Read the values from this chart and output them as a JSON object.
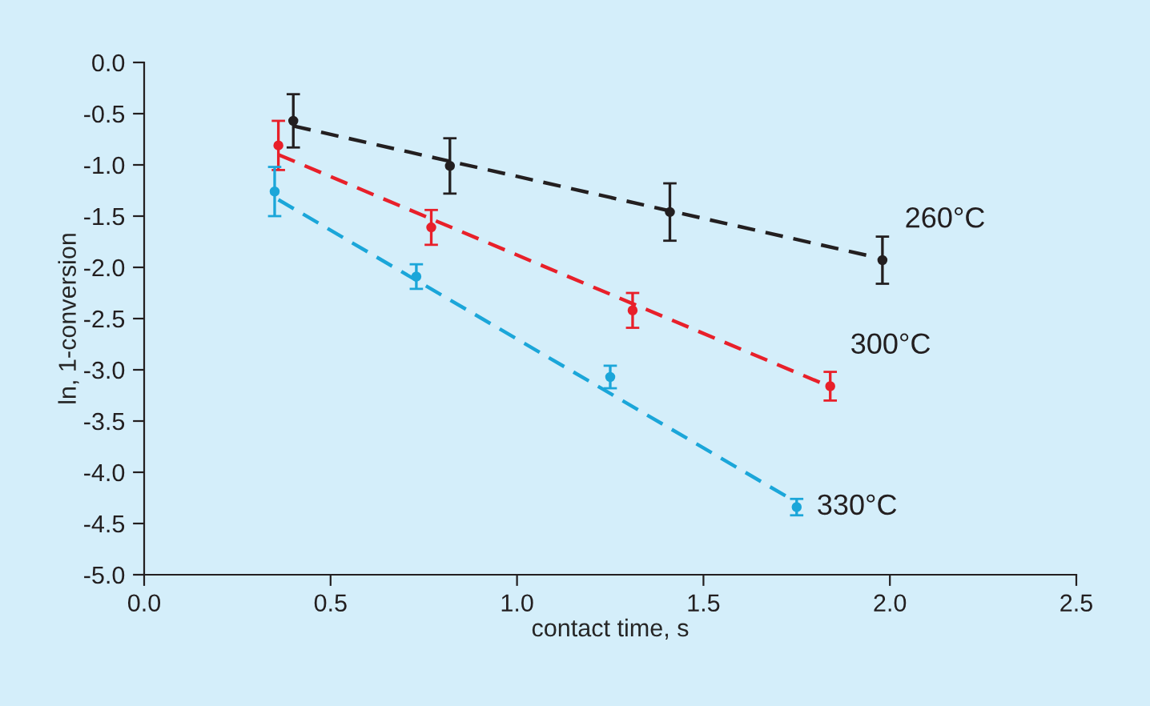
{
  "chart_data": {
    "type": "scatter",
    "xlabel": "contact time, s",
    "ylabel": "ln, 1-conversion",
    "xlim": [
      0.0,
      2.5
    ],
    "xticks": [
      {
        "value": 0,
        "label": "0.0"
      },
      0.5,
      {
        "value": 1,
        "label": "1.0"
      },
      1.5,
      {
        "value": 2,
        "label": "2.0"
      },
      2.5
    ],
    "ylim": [
      -5.0,
      0.0
    ],
    "yticks": [
      {
        "value": 0,
        "label": "0.0"
      },
      -0.5,
      {
        "value": -1,
        "label": "-1.0"
      },
      -1.5,
      {
        "value": -2,
        "label": "-2.0"
      },
      -2.5,
      {
        "value": -3,
        "label": "-3.0"
      },
      -3.5,
      {
        "value": -4,
        "label": "-4.0"
      },
      -4.5,
      {
        "value": -5,
        "label": "-5.0"
      }
    ],
    "grid": false,
    "legend": false,
    "marker": "circle",
    "series": [
      {
        "name": "260°C",
        "color": "#231f20",
        "x": [
          0.4,
          0.82,
          1.41,
          1.98
        ],
        "values": [
          -0.57,
          -1.01,
          -1.46,
          -1.93
        ],
        "errors": [
          0.26,
          0.27,
          0.28,
          0.23
        ]
      },
      {
        "name": "300°C",
        "color": "#e8202a",
        "x": [
          0.36,
          0.77,
          1.31,
          1.84
        ],
        "values": [
          -0.81,
          -1.61,
          -2.42,
          -3.16
        ],
        "errors": [
          0.24,
          0.17,
          0.17,
          0.14
        ]
      },
      {
        "name": "330°C",
        "color": "#1ba6d9",
        "x": [
          0.35,
          0.73,
          1.25,
          1.75
        ],
        "values": [
          -1.26,
          -2.09,
          -3.07,
          -4.34
        ],
        "errors": [
          0.24,
          0.12,
          0.11,
          0.08
        ]
      },
      {
        "type": "line",
        "line_style": "dashed",
        "marker": "none",
        "color": "#231f20",
        "x": [
          0.4,
          1.96
        ],
        "values": [
          -0.62,
          -1.9
        ]
      },
      {
        "type": "line",
        "line_style": "dashed",
        "marker": "none",
        "color": "#e8202a",
        "x": [
          0.36,
          1.83
        ],
        "values": [
          -0.9,
          -3.15
        ]
      },
      {
        "type": "line",
        "line_style": "dashed",
        "marker": "none",
        "color": "#1ba6d9",
        "x": [
          0.36,
          1.72
        ],
        "values": [
          -1.34,
          -4.23
        ]
      }
    ]
  }
}
